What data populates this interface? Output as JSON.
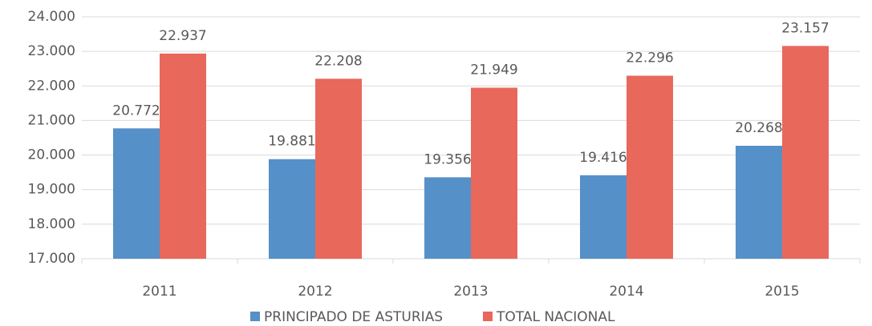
{
  "chart_data": {
    "type": "bar",
    "categories": [
      "2011",
      "2012",
      "2013",
      "2014",
      "2015"
    ],
    "series": [
      {
        "name": "PRINCIPADO DE ASTURIAS",
        "color": "#5590c8",
        "values": [
          20772,
          19881,
          19356,
          19416,
          20268
        ],
        "value_labels": [
          "20.772",
          "19.881",
          "19.356",
          "19.416",
          "20.268"
        ]
      },
      {
        "name": "TOTAL NACIONAL",
        "color": "#e8685b",
        "values": [
          22937,
          22208,
          21949,
          22296,
          23157
        ],
        "value_labels": [
          "22.937",
          "22.208",
          "21.949",
          "22.296",
          "23.157"
        ]
      }
    ],
    "ylim": [
      17000,
      24000
    ],
    "yticks": [
      {
        "value": 17000,
        "label": "17.000"
      },
      {
        "value": 18000,
        "label": "18.000"
      },
      {
        "value": 19000,
        "label": "19.000"
      },
      {
        "value": 20000,
        "label": "20.000"
      },
      {
        "value": 21000,
        "label": "21.000"
      },
      {
        "value": 22000,
        "label": "22.000"
      },
      {
        "value": 23000,
        "label": "23.000"
      },
      {
        "value": 24000,
        "label": "24.000"
      }
    ],
    "grid": true,
    "legend": "bottom"
  }
}
